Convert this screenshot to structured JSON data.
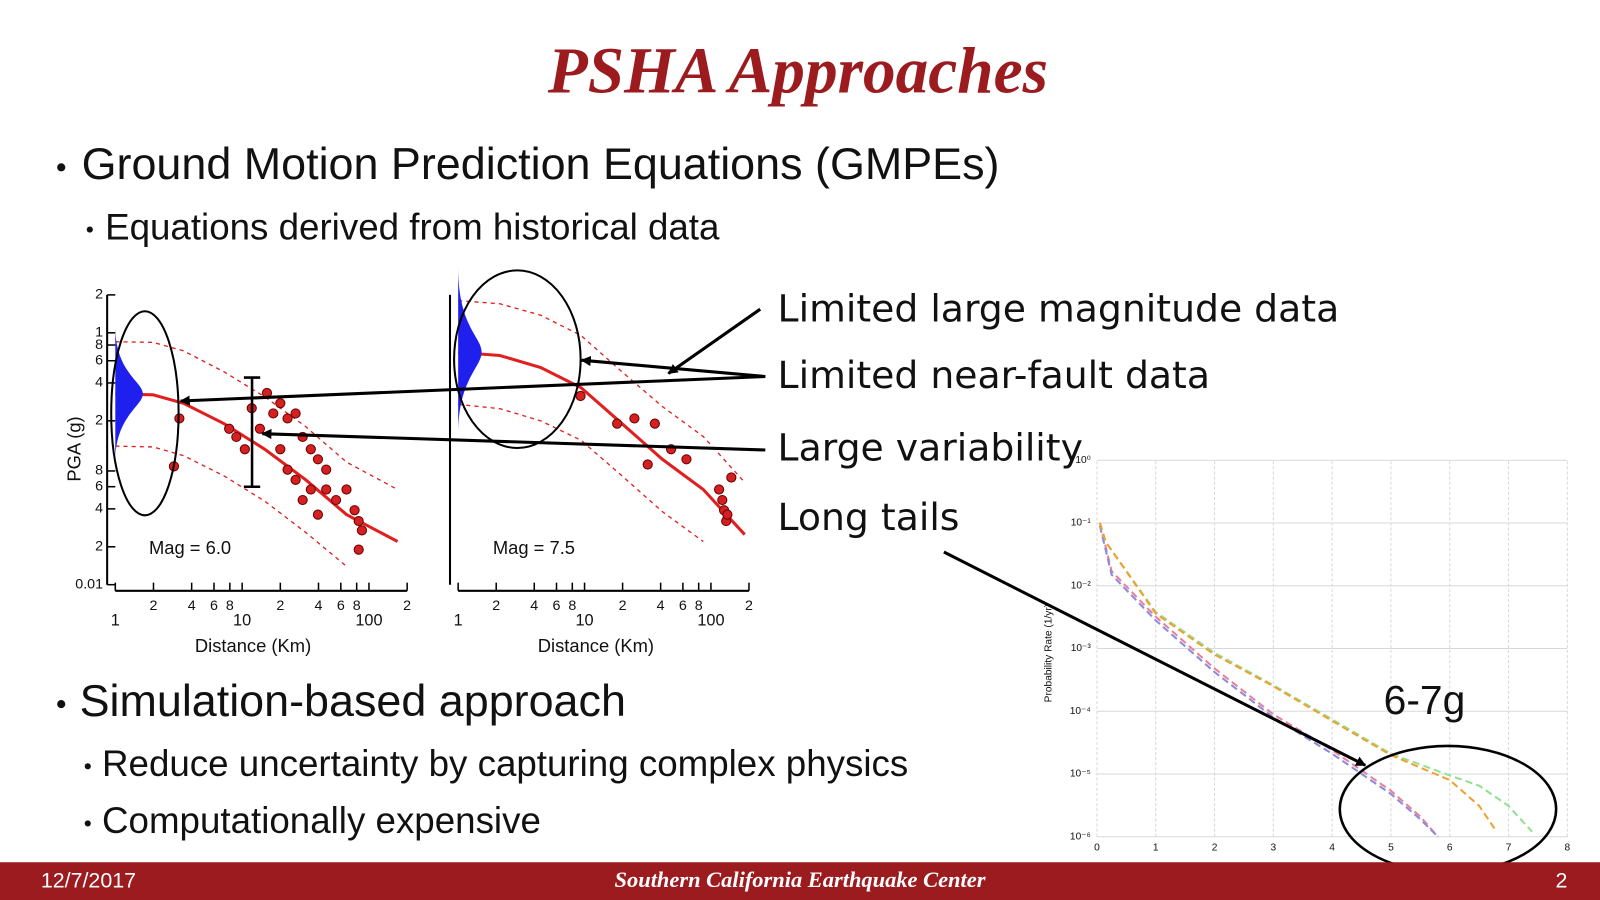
{
  "title": "PSHA Approaches",
  "bullets": [
    {
      "text": "Ground Motion Prediction Equations (GMPEs)",
      "sub": [
        "Equations derived from historical data"
      ]
    },
    {
      "text": "Simulation-based approach",
      "sub": [
        "Reduce uncertainty by capturing complex physics",
        "Computationally expensive"
      ]
    }
  ],
  "callouts": [
    "Limited large magnitude data",
    "Limited near-fault data",
    "Large variability",
    "Long tails"
  ],
  "tail_annotation": "6-7g",
  "footer": {
    "date": "12/7/2017",
    "org": "Southern California Earthquake Center",
    "page": "2"
  },
  "chart_data": [
    {
      "type": "scatter",
      "annotation": "Mag = 6.0",
      "x_label": "Distance (Km)",
      "y_label": "PGA (g)",
      "log_x": true,
      "log_y": true,
      "xlim": [
        1,
        200
      ],
      "ylim": [
        0.01,
        2
      ],
      "xticks": [
        1,
        2,
        4,
        6,
        8,
        10,
        {
          "value": 20,
          "label": "2"
        },
        {
          "value": 40,
          "label": "4"
        },
        {
          "value": 60,
          "label": "6"
        },
        {
          "value": 80,
          "label": "8"
        },
        100,
        {
          "value": 200,
          "label": "2"
        }
      ],
      "yticks": [
        0.01,
        {
          "value": 0.02,
          "label": "2"
        },
        {
          "value": 0.04,
          "label": "4"
        },
        {
          "value": 0.06,
          "label": "6"
        },
        {
          "value": 0.08,
          "label": "8"
        },
        {
          "value": 0.2,
          "label": "2"
        },
        {
          "value": 0.4,
          "label": "4"
        },
        {
          "value": 0.6,
          "label": "6"
        },
        {
          "value": 0.8,
          "label": "8"
        },
        1,
        2
      ],
      "point_color": "#d42020",
      "curve_color": "#e02020",
      "points": {
        "x": [
          2.9,
          3.2,
          7.9,
          9.0,
          10.5,
          11.9,
          13.8,
          15.7,
          17.6,
          20,
          20,
          22.8,
          22.8,
          26.4,
          26.4,
          30,
          30,
          34.8,
          34.8,
          39.6,
          39.6,
          46,
          46,
          55,
          66.5,
          77,
          83,
          88,
          83
        ],
        "values": [
          0.087,
          0.209,
          0.173,
          0.149,
          0.119,
          0.252,
          0.173,
          0.333,
          0.229,
          0.276,
          0.119,
          0.209,
          0.082,
          0.229,
          0.068,
          0.149,
          0.047,
          0.119,
          0.057,
          0.099,
          0.036,
          0.082,
          0.057,
          0.047,
          0.057,
          0.039,
          0.032,
          0.027,
          0.019
        ]
      },
      "curves": [
        {
          "dashed": false,
          "x": [
            1,
            1.98,
            3.45,
            7.2,
            15.1,
            31.7,
            66.5,
            168
          ],
          "values": [
            0.327,
            0.322,
            0.276,
            0.19,
            0.119,
            0.068,
            0.036,
            0.022
          ]
        },
        {
          "dashed": true,
          "x": [
            1,
            1.98,
            3.45,
            7.2,
            15.1,
            31.7,
            66.5,
            168
          ],
          "values": [
            0.85,
            0.84,
            0.72,
            0.49,
            0.31,
            0.18,
            0.094,
            0.057
          ]
        },
        {
          "dashed": true,
          "x": [
            1,
            1.98,
            3.45,
            7.2,
            15.1,
            31.7,
            66.5
          ],
          "values": [
            0.126,
            0.124,
            0.106,
            0.073,
            0.046,
            0.026,
            0.014
          ]
        }
      ]
    },
    {
      "type": "scatter",
      "annotation": "Mag = 7.5",
      "x_label": "Distance (Km)",
      "log_x": true,
      "log_y": true,
      "xlim": [
        1,
        200
      ],
      "ylim": [
        0.01,
        2
      ],
      "xticks": [
        1,
        2,
        4,
        6,
        8,
        10,
        {
          "value": 20,
          "label": "2"
        },
        {
          "value": 40,
          "label": "4"
        },
        {
          "value": 60,
          "label": "6"
        },
        {
          "value": 80,
          "label": "8"
        },
        100,
        {
          "value": 200,
          "label": "2"
        }
      ],
      "point_color": "#d42020",
      "curve_color": "#e02020",
      "points": {
        "x": [
          9.3,
          18.1,
          24.8,
          36,
          31.6,
          48.4,
          64,
          145,
          116,
          123,
          127,
          132,
          135
        ],
        "values": [
          0.315,
          0.19,
          0.209,
          0.19,
          0.09,
          0.119,
          0.099,
          0.071,
          0.057,
          0.047,
          0.039,
          0.032,
          0.036
        ]
      },
      "curves": [
        {
          "dashed": false,
          "x": [
            1,
            2.14,
            4.5,
            9.4,
            19.8,
            41.3,
            87,
            185
          ],
          "values": [
            0.7,
            0.66,
            0.53,
            0.366,
            0.19,
            0.099,
            0.057,
            0.025
          ]
        },
        {
          "dashed": true,
          "x": [
            1,
            2.14,
            4.5,
            9.4,
            19.8,
            41.3,
            87,
            185
          ],
          "values": [
            1.8,
            1.7,
            1.38,
            0.95,
            0.49,
            0.26,
            0.15,
            0.065
          ]
        },
        {
          "dashed": true,
          "x": [
            1,
            2.14,
            4.5,
            9.4,
            19.8,
            41.3,
            87
          ],
          "values": [
            0.27,
            0.25,
            0.2,
            0.14,
            0.073,
            0.038,
            0.022
          ]
        }
      ]
    },
    {
      "type": "line",
      "y_label": "Probability Rate (1/yr)",
      "log_y": true,
      "grid": true,
      "xlim": [
        0,
        8
      ],
      "ylim": [
        1e-06,
        1
      ],
      "xticks": [
        0,
        1,
        2,
        3,
        4,
        5,
        6,
        7,
        8
      ],
      "yticks": [
        {
          "value": 1,
          "label": "10⁰"
        },
        {
          "value": 0.1,
          "label": "10⁻¹"
        },
        {
          "value": 0.01,
          "label": "10⁻²"
        },
        {
          "value": 0.001,
          "label": "10⁻³"
        },
        {
          "value": 0.0001,
          "label": "10⁻⁴"
        },
        {
          "value": 1e-05,
          "label": "10⁻⁵"
        },
        {
          "value": 1e-06,
          "label": "10⁻⁶"
        }
      ],
      "series": [
        {
          "color": "#e8809a",
          "x": [
            0.05,
            0.25,
            1,
            2,
            3,
            4,
            5,
            5.5,
            5.8
          ],
          "values": [
            0.1,
            0.017,
            0.0032,
            0.00048,
            8.9e-05,
            2.4e-05,
            5.4e-06,
            2.1e-06,
            1e-06
          ]
        },
        {
          "color": "#8a8ae0",
          "x": [
            0.05,
            0.25,
            1,
            2,
            3,
            4,
            5,
            5.5,
            5.8
          ],
          "values": [
            0.09,
            0.015,
            0.0028,
            0.00042,
            8e-05,
            2.1e-05,
            4.8e-06,
            1.9e-06,
            1e-06
          ]
        },
        {
          "color": "#90e090",
          "x": [
            0.05,
            0.15,
            1,
            2,
            3,
            4,
            5,
            6,
            6.5,
            7,
            7.4
          ],
          "values": [
            0.1,
            0.05,
            0.0038,
            0.00085,
            0.00026,
            7.4e-05,
            2.1e-05,
            9.5e-06,
            6.5e-06,
            3.1e-06,
            1.2e-06
          ]
        },
        {
          "color": "#f0a030",
          "x": [
            0.05,
            0.15,
            1,
            2,
            3,
            4,
            5,
            6,
            6.5,
            6.8
          ],
          "values": [
            0.1,
            0.05,
            0.0036,
            0.0008,
            0.00025,
            7e-05,
            2e-05,
            8e-06,
            3.1e-06,
            1.2e-06
          ]
        }
      ]
    }
  ]
}
